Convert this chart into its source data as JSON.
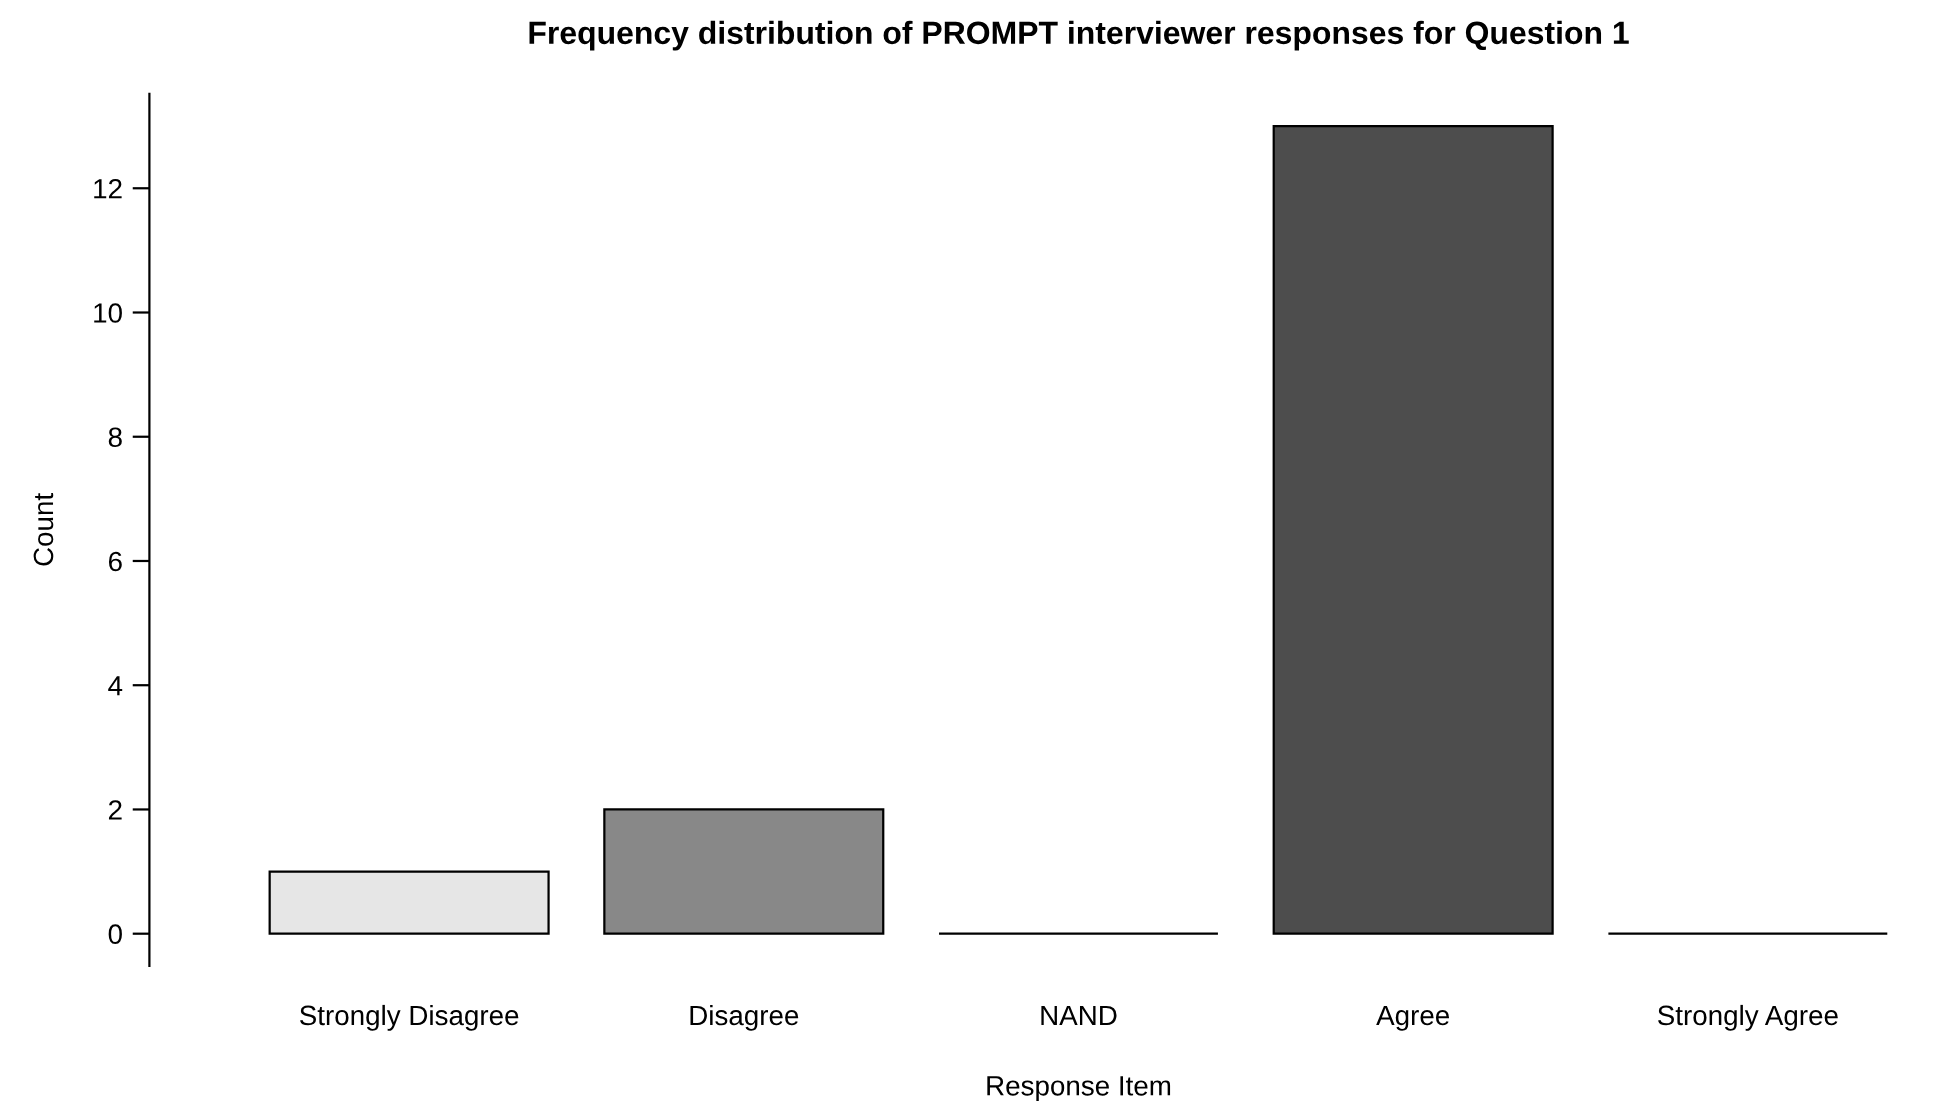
{
  "chart_data": {
    "type": "bar",
    "title": "Frequency distribution of PROMPT interviewer responses for Question 1",
    "xlabel": "Response Item",
    "ylabel": "Count",
    "categories": [
      "Strongly Disagree",
      "Disagree",
      "NAND",
      "Agree",
      "Strongly Agree"
    ],
    "values": [
      1,
      2,
      0,
      13,
      0
    ],
    "colors": [
      "#e6e6e6",
      "#888888",
      "#000000",
      "#4d4d4d",
      "#000000"
    ],
    "ylim": [
      -0.52,
      13.52
    ],
    "yticks": [
      0,
      2,
      4,
      6,
      8,
      10,
      12
    ],
    "grid": false
  }
}
